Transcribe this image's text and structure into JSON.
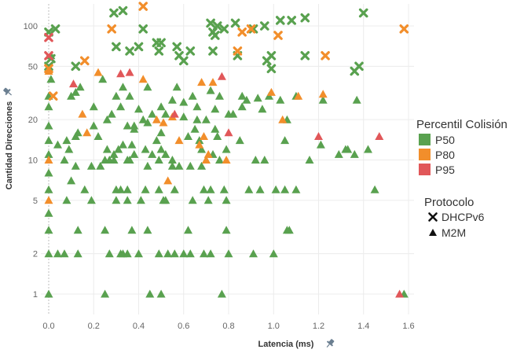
{
  "chart_data": {
    "type": "scatter",
    "xlabel": "Latencia (ms)",
    "ylabel": "Cantidad Direcciones",
    "xlim": [
      -0.02,
      1.62
    ],
    "ylim": [
      0.8,
      150
    ],
    "y_scale": "log",
    "x_ticks": [
      0.0,
      0.2,
      0.4,
      0.6,
      0.8,
      1.0,
      1.2,
      1.4,
      1.6
    ],
    "x_tick_labels": [
      "0.0",
      "0.2",
      "0.4",
      "0.6",
      "0.8",
      "1.0",
      "1.2",
      "1.4",
      "1.6"
    ],
    "y_ticks": [
      1,
      2,
      5,
      10,
      20,
      50,
      100
    ],
    "y_tick_labels": [
      "1",
      "2",
      "5",
      "10",
      "20",
      "50",
      "100"
    ],
    "grid": true,
    "colors": {
      "P50": "#59a14f",
      "P80": "#f28e2b",
      "P95": "#e15759"
    },
    "legend": {
      "placement": "right",
      "color_title": "Percentil Colisión",
      "color_entries": [
        "P50",
        "P80",
        "P95"
      ],
      "shape_title": "Protocolo",
      "shape_entries": [
        {
          "label": "DHCPv6",
          "shape": "x"
        },
        {
          "label": "M2M",
          "shape": "triangle"
        }
      ]
    },
    "series": [
      {
        "name": "DHCPv6",
        "percentil": "P50",
        "shape": "x",
        "points": [
          [
            0.0,
            90
          ],
          [
            0.03,
            95
          ],
          [
            0.29,
            125
          ],
          [
            0.42,
            95
          ],
          [
            0.33,
            130
          ],
          [
            0.3,
            70
          ],
          [
            0.36,
            65
          ],
          [
            0.4,
            70
          ],
          [
            0.48,
            75
          ],
          [
            0.5,
            75
          ],
          [
            0.49,
            65
          ],
          [
            0.57,
            70
          ],
          [
            0.58,
            60
          ],
          [
            0.63,
            65
          ],
          [
            0.72,
            105
          ],
          [
            0.75,
            100
          ],
          [
            0.73,
            90
          ],
          [
            0.74,
            85
          ],
          [
            0.78,
            95
          ],
          [
            0.83,
            105
          ],
          [
            0.91,
            95
          ],
          [
            0.96,
            100
          ],
          [
            1.03,
            110
          ],
          [
            1.08,
            110
          ],
          [
            1.14,
            115
          ],
          [
            1.4,
            125
          ],
          [
            1.38,
            50
          ],
          [
            1.36,
            46
          ],
          [
            1.14,
            60
          ],
          [
            0.99,
            60
          ],
          [
            0.99,
            48
          ],
          [
            0.97,
            55
          ],
          [
            0.84,
            60
          ],
          [
            0.73,
            65
          ],
          [
            0.6,
            55
          ],
          [
            0.12,
            50
          ],
          [
            0.0,
            50
          ],
          [
            0.01,
            57
          ]
        ]
      },
      {
        "name": "DHCPv6",
        "percentil": "P80",
        "shape": "x",
        "points": [
          [
            0.42,
            140
          ],
          [
            0.28,
            95
          ],
          [
            0.86,
            90
          ],
          [
            0.9,
            95
          ],
          [
            1.02,
            85
          ],
          [
            0.84,
            65
          ],
          [
            1.23,
            60
          ],
          [
            1.58,
            95
          ],
          [
            0.16,
            55
          ],
          [
            0.02,
            30
          ],
          [
            0.0,
            48
          ]
        ]
      },
      {
        "name": "DHCPv6",
        "percentil": "P95",
        "shape": "x",
        "points": [
          [
            0.0,
            82
          ],
          [
            0.0,
            60
          ]
        ]
      },
      {
        "name": "M2M",
        "percentil": "P50",
        "shape": "triangle",
        "points": [
          [
            0.0,
            1
          ],
          [
            0.0,
            2
          ],
          [
            0.0,
            3
          ],
          [
            0.0,
            4
          ],
          [
            0.0,
            6
          ],
          [
            0.0,
            8
          ],
          [
            0.0,
            11
          ],
          [
            0.0,
            14
          ],
          [
            0.0,
            18
          ],
          [
            0.0,
            25
          ],
          [
            0.0,
            30
          ],
          [
            0.01,
            40
          ],
          [
            0.01,
            60
          ],
          [
            0.04,
            2
          ],
          [
            0.07,
            2
          ],
          [
            0.13,
            2
          ],
          [
            0.27,
            2
          ],
          [
            0.32,
            2
          ],
          [
            0.33,
            2
          ],
          [
            0.35,
            2
          ],
          [
            0.4,
            2
          ],
          [
            0.49,
            2
          ],
          [
            0.53,
            2
          ],
          [
            0.56,
            2
          ],
          [
            0.6,
            2
          ],
          [
            0.63,
            2
          ],
          [
            0.69,
            2
          ],
          [
            0.72,
            2
          ],
          [
            0.8,
            2
          ],
          [
            0.91,
            2
          ],
          [
            1.0,
            2
          ],
          [
            0.25,
            1
          ],
          [
            0.45,
            1
          ],
          [
            0.5,
            1
          ],
          [
            0.77,
            1
          ],
          [
            1.58,
            1
          ],
          [
            0.13,
            3
          ],
          [
            0.25,
            3
          ],
          [
            0.37,
            3
          ],
          [
            0.44,
            3
          ],
          [
            0.62,
            3
          ],
          [
            0.79,
            3
          ],
          [
            1.06,
            3
          ],
          [
            1.07,
            3
          ],
          [
            0.08,
            5
          ],
          [
            0.19,
            5
          ],
          [
            0.3,
            5
          ],
          [
            0.35,
            5
          ],
          [
            0.41,
            5
          ],
          [
            0.51,
            5
          ],
          [
            0.52,
            5
          ],
          [
            0.64,
            5
          ],
          [
            0.71,
            5
          ],
          [
            0.79,
            5
          ],
          [
            0.1,
            7
          ],
          [
            0.16,
            6
          ],
          [
            0.3,
            6
          ],
          [
            0.32,
            6
          ],
          [
            0.35,
            6
          ],
          [
            0.43,
            6
          ],
          [
            0.49,
            6
          ],
          [
            0.56,
            6
          ],
          [
            0.69,
            6
          ],
          [
            0.72,
            6
          ],
          [
            0.78,
            6
          ],
          [
            0.89,
            6
          ],
          [
            0.94,
            6
          ],
          [
            1.01,
            6
          ],
          [
            1.05,
            6
          ],
          [
            1.1,
            6
          ],
          [
            1.45,
            6
          ],
          [
            0.04,
            13
          ],
          [
            0.08,
            14
          ],
          [
            0.09,
            12
          ],
          [
            0.12,
            15
          ],
          [
            0.13,
            16
          ],
          [
            0.2,
            18
          ],
          [
            0.26,
            12
          ],
          [
            0.29,
            10
          ],
          [
            0.31,
            12
          ],
          [
            0.33,
            13
          ],
          [
            0.35,
            10
          ],
          [
            0.37,
            13
          ],
          [
            0.38,
            17
          ],
          [
            0.43,
            12
          ],
          [
            0.46,
            11
          ],
          [
            0.48,
            14
          ],
          [
            0.5,
            12
          ],
          [
            0.52,
            11
          ],
          [
            0.55,
            10
          ],
          [
            0.58,
            9
          ],
          [
            0.62,
            15
          ],
          [
            0.65,
            17
          ],
          [
            0.67,
            14
          ],
          [
            0.68,
            12
          ],
          [
            0.7,
            10
          ],
          [
            0.74,
            17
          ],
          [
            0.75,
            15
          ],
          [
            0.79,
            12
          ],
          [
            0.85,
            14
          ],
          [
            0.92,
            10
          ],
          [
            0.96,
            10
          ],
          [
            1.05,
            14
          ],
          [
            1.16,
            10
          ],
          [
            1.29,
            11
          ],
          [
            1.32,
            12
          ],
          [
            1.42,
            12
          ],
          [
            1.36,
            11
          ],
          [
            1.21,
            13
          ],
          [
            0.07,
            10
          ],
          [
            0.12,
            9
          ],
          [
            0.19,
            9
          ],
          [
            0.23,
            9
          ],
          [
            0.25,
            10
          ],
          [
            0.27,
            10
          ],
          [
            0.29,
            11
          ],
          [
            0.36,
            10
          ],
          [
            0.38,
            11
          ],
          [
            0.44,
            9
          ],
          [
            0.49,
            10
          ],
          [
            0.55,
            9
          ],
          [
            0.63,
            9
          ],
          [
            0.68,
            9
          ],
          [
            0.73,
            11
          ],
          [
            0.76,
            10
          ],
          [
            0.1,
            30
          ],
          [
            0.12,
            32
          ],
          [
            0.14,
            35
          ],
          [
            0.24,
            40
          ],
          [
            0.3,
            30
          ],
          [
            0.32,
            25
          ],
          [
            0.33,
            35
          ],
          [
            0.36,
            30
          ],
          [
            0.4,
            24
          ],
          [
            0.44,
            35
          ],
          [
            0.5,
            25
          ],
          [
            0.55,
            28
          ],
          [
            0.57,
            35
          ],
          [
            0.6,
            27
          ],
          [
            0.64,
            30
          ],
          [
            0.66,
            25
          ],
          [
            0.7,
            20
          ],
          [
            0.72,
            33
          ],
          [
            0.74,
            24
          ],
          [
            0.76,
            30
          ],
          [
            0.8,
            22
          ],
          [
            0.86,
            30
          ],
          [
            0.88,
            28
          ],
          [
            0.93,
            29
          ],
          [
            0.98,
            30
          ],
          [
            1.03,
            28
          ],
          [
            1.1,
            30
          ],
          [
            1.22,
            28
          ],
          [
            1.37,
            28
          ],
          [
            1.33,
            12
          ],
          [
            0.2,
            25
          ],
          [
            0.28,
            22
          ],
          [
            0.35,
            18
          ],
          [
            0.42,
            20
          ],
          [
            0.46,
            22
          ],
          [
            0.52,
            22
          ],
          [
            0.6,
            21
          ],
          [
            0.66,
            20
          ],
          [
            0.82,
            22
          ],
          [
            0.86,
            25
          ],
          [
            0.95,
            24
          ],
          [
            1.06,
            20
          ],
          [
            0.5,
            16
          ],
          [
            0.44,
            19
          ],
          [
            0.38,
            18
          ],
          [
            0.26,
            20
          ],
          [
            0.22,
            15
          ]
        ]
      },
      {
        "name": "M2M",
        "percentil": "P80",
        "shape": "triangle",
        "points": [
          [
            0.0,
            5
          ],
          [
            0.0,
            10
          ],
          [
            0.0,
            46
          ],
          [
            0.15,
            22
          ],
          [
            0.17,
            16
          ],
          [
            0.22,
            45
          ],
          [
            0.48,
            20
          ],
          [
            0.51,
            19
          ],
          [
            0.53,
            7
          ],
          [
            0.55,
            21
          ],
          [
            0.58,
            14
          ],
          [
            0.67,
            13
          ],
          [
            0.68,
            38
          ],
          [
            0.69,
            15
          ],
          [
            0.71,
            11
          ],
          [
            0.7,
            10
          ],
          [
            0.73,
            38
          ],
          [
            0.79,
            10
          ],
          [
            0.99,
            32
          ],
          [
            1.04,
            20
          ],
          [
            1.11,
            30
          ],
          [
            1.22,
            31
          ],
          [
            0.42,
            40
          ]
        ]
      },
      {
        "name": "M2M",
        "percentil": "P95",
        "shape": "triangle",
        "points": [
          [
            0.11,
            37
          ],
          [
            0.32,
            44
          ],
          [
            0.36,
            45
          ],
          [
            0.56,
            22
          ],
          [
            0.77,
            42
          ],
          [
            0.8,
            16
          ],
          [
            1.2,
            15
          ],
          [
            1.47,
            15
          ],
          [
            1.56,
            1
          ]
        ]
      }
    ]
  }
}
